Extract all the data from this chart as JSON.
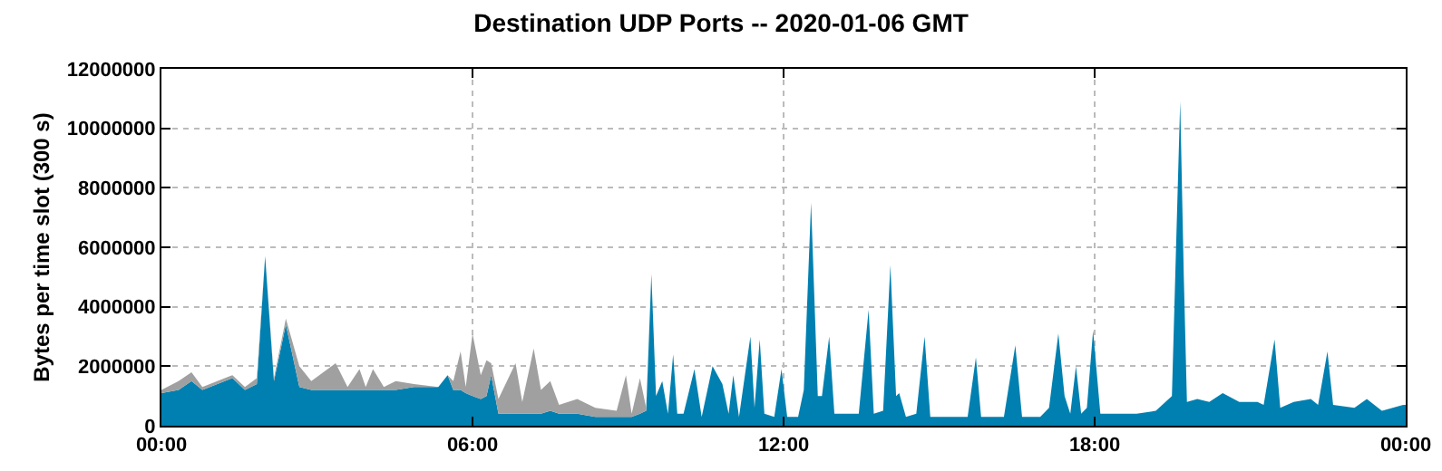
{
  "chart_data": {
    "type": "area",
    "title": "Destination UDP Ports -- 2020-01-06 GMT",
    "ylabel": "Bytes per time slot (300 s)",
    "stacked": true,
    "grid": true,
    "x": [
      0,
      0.33,
      0.58,
      0.79,
      1.37,
      1.61,
      1.84,
      2.0,
      2.17,
      2.4,
      2.66,
      2.89,
      3.36,
      3.59,
      3.82,
      3.94,
      4.08,
      4.29,
      4.52,
      4.87,
      5.34,
      5.52,
      5.63,
      5.77,
      5.87,
      6.0,
      6.16,
      6.27,
      6.36,
      6.5,
      6.83,
      6.96,
      7.18,
      7.32,
      7.5,
      7.67,
      8.02,
      8.37,
      8.78,
      8.96,
      9.07,
      9.23,
      9.35,
      9.45,
      9.54,
      9.66,
      9.77,
      9.87,
      9.95,
      10.07,
      10.28,
      10.42,
      10.63,
      10.82,
      10.94,
      11.03,
      11.14,
      11.36,
      11.44,
      11.54,
      11.63,
      11.82,
      11.96,
      12.07,
      12.28,
      12.39,
      12.53,
      12.66,
      12.74,
      12.88,
      12.98,
      13.45,
      13.64,
      13.74,
      13.92,
      14.06,
      14.17,
      14.23,
      14.36,
      14.56,
      14.72,
      14.83,
      15.2,
      15.55,
      15.71,
      15.81,
      16.25,
      16.47,
      16.6,
      16.95,
      17.12,
      17.3,
      17.42,
      17.53,
      17.64,
      17.74,
      17.85,
      17.97,
      18.11,
      18.46,
      18.81,
      19.18,
      19.49,
      19.57,
      19.65,
      19.72,
      19.78,
      19.98,
      20.21,
      20.47,
      20.79,
      21.14,
      21.26,
      21.47,
      21.58,
      21.84,
      22.17,
      22.31,
      22.49,
      22.6,
      23.01,
      23.25,
      23.54,
      23.95,
      24
    ],
    "series": [
      {
        "color": "#0080b0",
        "values": [
          1100000,
          1200000,
          1500000,
          1200000,
          1600000,
          1200000,
          1400000,
          5700000,
          1500000,
          3400000,
          1300000,
          1200000,
          1200000,
          1200000,
          1200000,
          1200000,
          1200000,
          1200000,
          1200000,
          1300000,
          1300000,
          1700000,
          1200000,
          1200000,
          1100000,
          1000000,
          900000,
          1000000,
          1700000,
          400000,
          400000,
          400000,
          400000,
          400000,
          500000,
          400000,
          400000,
          300000,
          300000,
          300000,
          300000,
          400000,
          500000,
          5100000,
          1000000,
          1500000,
          400000,
          2400000,
          400000,
          400000,
          1900000,
          300000,
          2000000,
          1400000,
          400000,
          1700000,
          300000,
          3000000,
          600000,
          2900000,
          400000,
          300000,
          1900000,
          300000,
          300000,
          1200000,
          7500000,
          1000000,
          1000000,
          3000000,
          400000,
          400000,
          3900000,
          400000,
          500000,
          5400000,
          1000000,
          1100000,
          300000,
          400000,
          3000000,
          300000,
          300000,
          300000,
          2300000,
          300000,
          300000,
          2700000,
          300000,
          300000,
          600000,
          3100000,
          1000000,
          400000,
          2000000,
          400000,
          600000,
          3200000,
          400000,
          400000,
          400000,
          500000,
          1000000,
          6000000,
          10900000,
          5000000,
          800000,
          900000,
          800000,
          1100000,
          800000,
          800000,
          700000,
          2900000,
          600000,
          800000,
          900000,
          700000,
          2500000,
          700000,
          600000,
          900000,
          500000,
          700000,
          700000
        ]
      },
      {
        "color": "#a0a0a0",
        "values": [
          100000,
          300000,
          300000,
          100000,
          100000,
          100000,
          200000,
          0,
          100000,
          200000,
          700000,
          300000,
          900000,
          100000,
          700000,
          100000,
          700000,
          100000,
          300000,
          100000,
          0,
          0,
          300000,
          1300000,
          200000,
          2100000,
          800000,
          1200000,
          400000,
          500000,
          1700000,
          400000,
          2200000,
          800000,
          1000000,
          300000,
          500000,
          300000,
          200000,
          1400000,
          100000,
          1200000,
          100000,
          0,
          0,
          0,
          0,
          0,
          0,
          0,
          0,
          0,
          0,
          0,
          0,
          0,
          0,
          0,
          0,
          0,
          0,
          0,
          0,
          0,
          0,
          0,
          0,
          0,
          0,
          0,
          0,
          0,
          0,
          0,
          0,
          0,
          0,
          0,
          0,
          0,
          0,
          0,
          0,
          0,
          0,
          0,
          0,
          0,
          0,
          0,
          0,
          0,
          0,
          0,
          0,
          0,
          0,
          0,
          0,
          0,
          0,
          0,
          0,
          0,
          0,
          0,
          0,
          0,
          0,
          0,
          0,
          0,
          0,
          0,
          0,
          0,
          0,
          0,
          0,
          0,
          0,
          0,
          0,
          0,
          0
        ]
      }
    ],
    "xlim": [
      0,
      24
    ],
    "xticks": [
      {
        "value": 0,
        "label": "00:00"
      },
      {
        "value": 6,
        "label": "06:00"
      },
      {
        "value": 12,
        "label": "12:00"
      },
      {
        "value": 18,
        "label": "18:00"
      },
      {
        "value": 24,
        "label": "00:00"
      }
    ],
    "ylim": [
      0,
      12000000
    ],
    "yticks": [
      0,
      2000000,
      4000000,
      6000000,
      8000000,
      10000000,
      12000000
    ]
  }
}
